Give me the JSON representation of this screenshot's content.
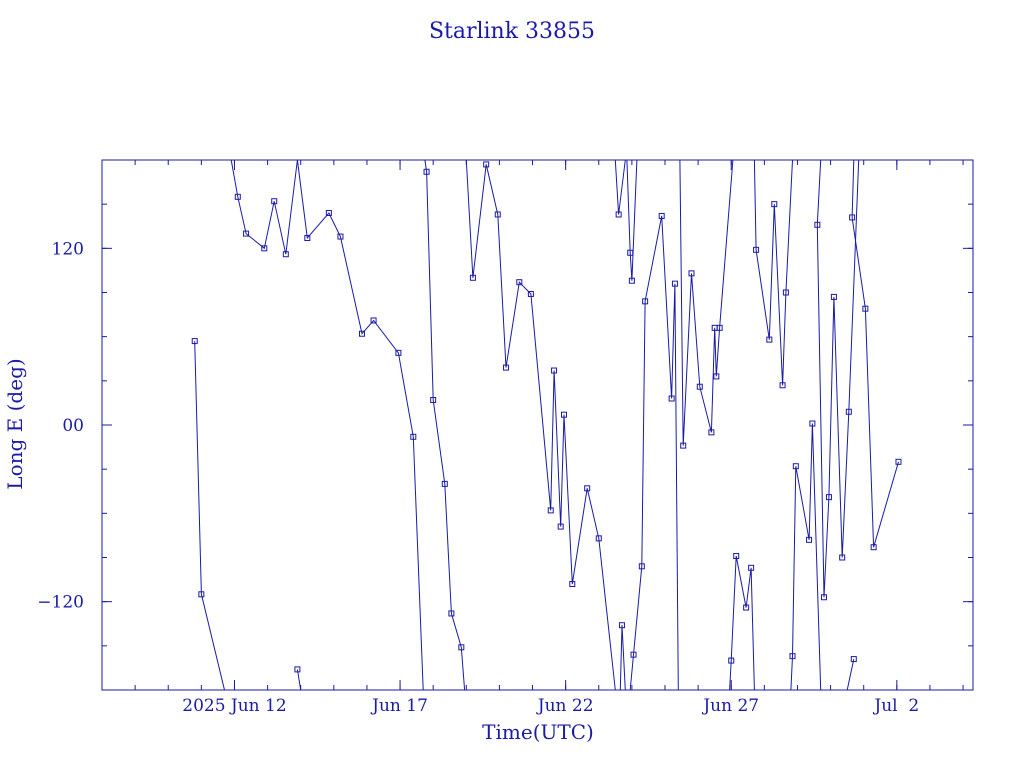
{
  "chart_data": {
    "type": "line",
    "title": "Starlink 33855",
    "xlabel": "Time(UTC)",
    "ylabel": "Long E (deg)",
    "xticks": [
      {
        "day": 12,
        "label": "2025 Jun 12"
      },
      {
        "day": 17,
        "label": "Jun 17"
      },
      {
        "day": 22,
        "label": "Jun 22"
      },
      {
        "day": 27,
        "label": "Jun 27"
      },
      {
        "day": 32,
        "label": "Jul  2"
      }
    ],
    "xlim_days": [
      8,
      34.3
    ],
    "ylim": [
      -180,
      180
    ],
    "yticks": [
      {
        "value": 120,
        "label": "120"
      },
      {
        "value": 0,
        "label": "00"
      },
      {
        "value": -120,
        "label": "−120"
      }
    ],
    "color": "#1a1aa6",
    "x_unit": "day of June 2025 (UTC)",
    "segments": [
      [
        [
          10.8,
          57
        ],
        [
          11.0,
          -115
        ],
        [
          11.7,
          -180
        ]
      ],
      [
        [
          11.9,
          180
        ],
        [
          12.1,
          155
        ],
        [
          12.35,
          130
        ],
        [
          12.9,
          120
        ],
        [
          13.2,
          152
        ],
        [
          13.55,
          116
        ],
        [
          13.9,
          182
        ]
      ],
      [
        [
          14.0,
          -180
        ],
        [
          13.9,
          -166
        ]
      ],
      [
        [
          13.9,
          182
        ],
        [
          14.2,
          127
        ],
        [
          14.85,
          144
        ],
        [
          15.2,
          128
        ],
        [
          15.85,
          62
        ],
        [
          16.2,
          71
        ],
        [
          16.95,
          49
        ],
        [
          17.4,
          -8
        ],
        [
          17.7,
          -180
        ]
      ],
      [
        [
          17.75,
          180
        ],
        [
          17.8,
          172
        ],
        [
          18.0,
          17
        ],
        [
          18.35,
          -40
        ],
        [
          18.55,
          -128
        ],
        [
          18.85,
          -151
        ],
        [
          18.95,
          -180
        ]
      ],
      [
        [
          19.0,
          180
        ],
        [
          19.2,
          100
        ],
        [
          19.6,
          177
        ],
        [
          19.95,
          143
        ],
        [
          20.2,
          39
        ],
        [
          20.6,
          97
        ],
        [
          20.95,
          89
        ],
        [
          21.55,
          -58
        ],
        [
          21.65,
          37
        ],
        [
          21.85,
          -69
        ],
        [
          21.95,
          7
        ],
        [
          22.2,
          -108
        ],
        [
          22.65,
          -43
        ],
        [
          23.0,
          -77
        ],
        [
          23.5,
          -180
        ]
      ],
      [
        [
          23.5,
          180
        ],
        [
          23.6,
          143
        ],
        [
          23.8,
          180
        ]
      ],
      [
        [
          23.65,
          -180
        ],
        [
          23.7,
          -136
        ],
        [
          23.8,
          -180
        ]
      ],
      [
        [
          23.85,
          180
        ],
        [
          23.95,
          117
        ],
        [
          24.0,
          98
        ],
        [
          24.15,
          180
        ]
      ],
      [
        [
          23.95,
          -180
        ],
        [
          24.05,
          -156
        ],
        [
          24.3,
          -96
        ],
        [
          24.4,
          84
        ],
        [
          24.9,
          142
        ],
        [
          25.2,
          18
        ],
        [
          25.3,
          96
        ],
        [
          25.4,
          -180
        ]
      ],
      [
        [
          25.45,
          180
        ],
        [
          25.55,
          -14
        ],
        [
          25.8,
          103
        ],
        [
          26.05,
          26
        ],
        [
          26.4,
          -5
        ],
        [
          26.5,
          66
        ],
        [
          26.55,
          33
        ],
        [
          26.65,
          66
        ],
        [
          27.05,
          180
        ]
      ],
      [
        [
          26.95,
          -180
        ],
        [
          27.0,
          -160
        ],
        [
          27.15,
          -89
        ],
        [
          27.45,
          -124
        ],
        [
          27.6,
          -97
        ],
        [
          27.7,
          -180
        ]
      ],
      [
        [
          27.7,
          180
        ],
        [
          27.75,
          119
        ],
        [
          28.15,
          58
        ],
        [
          28.3,
          150
        ],
        [
          28.55,
          27
        ],
        [
          28.65,
          90
        ],
        [
          28.85,
          180
        ]
      ],
      [
        [
          28.8,
          -180
        ],
        [
          28.85,
          -157
        ],
        [
          28.95,
          -28
        ],
        [
          29.35,
          -78
        ],
        [
          29.45,
          1
        ],
        [
          29.7,
          -180
        ]
      ],
      [
        [
          29.7,
          180
        ],
        [
          29.6,
          136
        ],
        [
          29.8,
          -117
        ],
        [
          29.95,
          -49
        ],
        [
          30.1,
          87
        ],
        [
          30.35,
          -90
        ],
        [
          30.55,
          9
        ],
        [
          30.85,
          180
        ]
      ],
      [
        [
          30.5,
          -180
        ],
        [
          30.7,
          -159
        ]
      ],
      [
        [
          30.7,
          180
        ],
        [
          30.65,
          141
        ],
        [
          31.05,
          79
        ],
        [
          31.3,
          -83
        ],
        [
          32.05,
          -25
        ]
      ]
    ]
  }
}
